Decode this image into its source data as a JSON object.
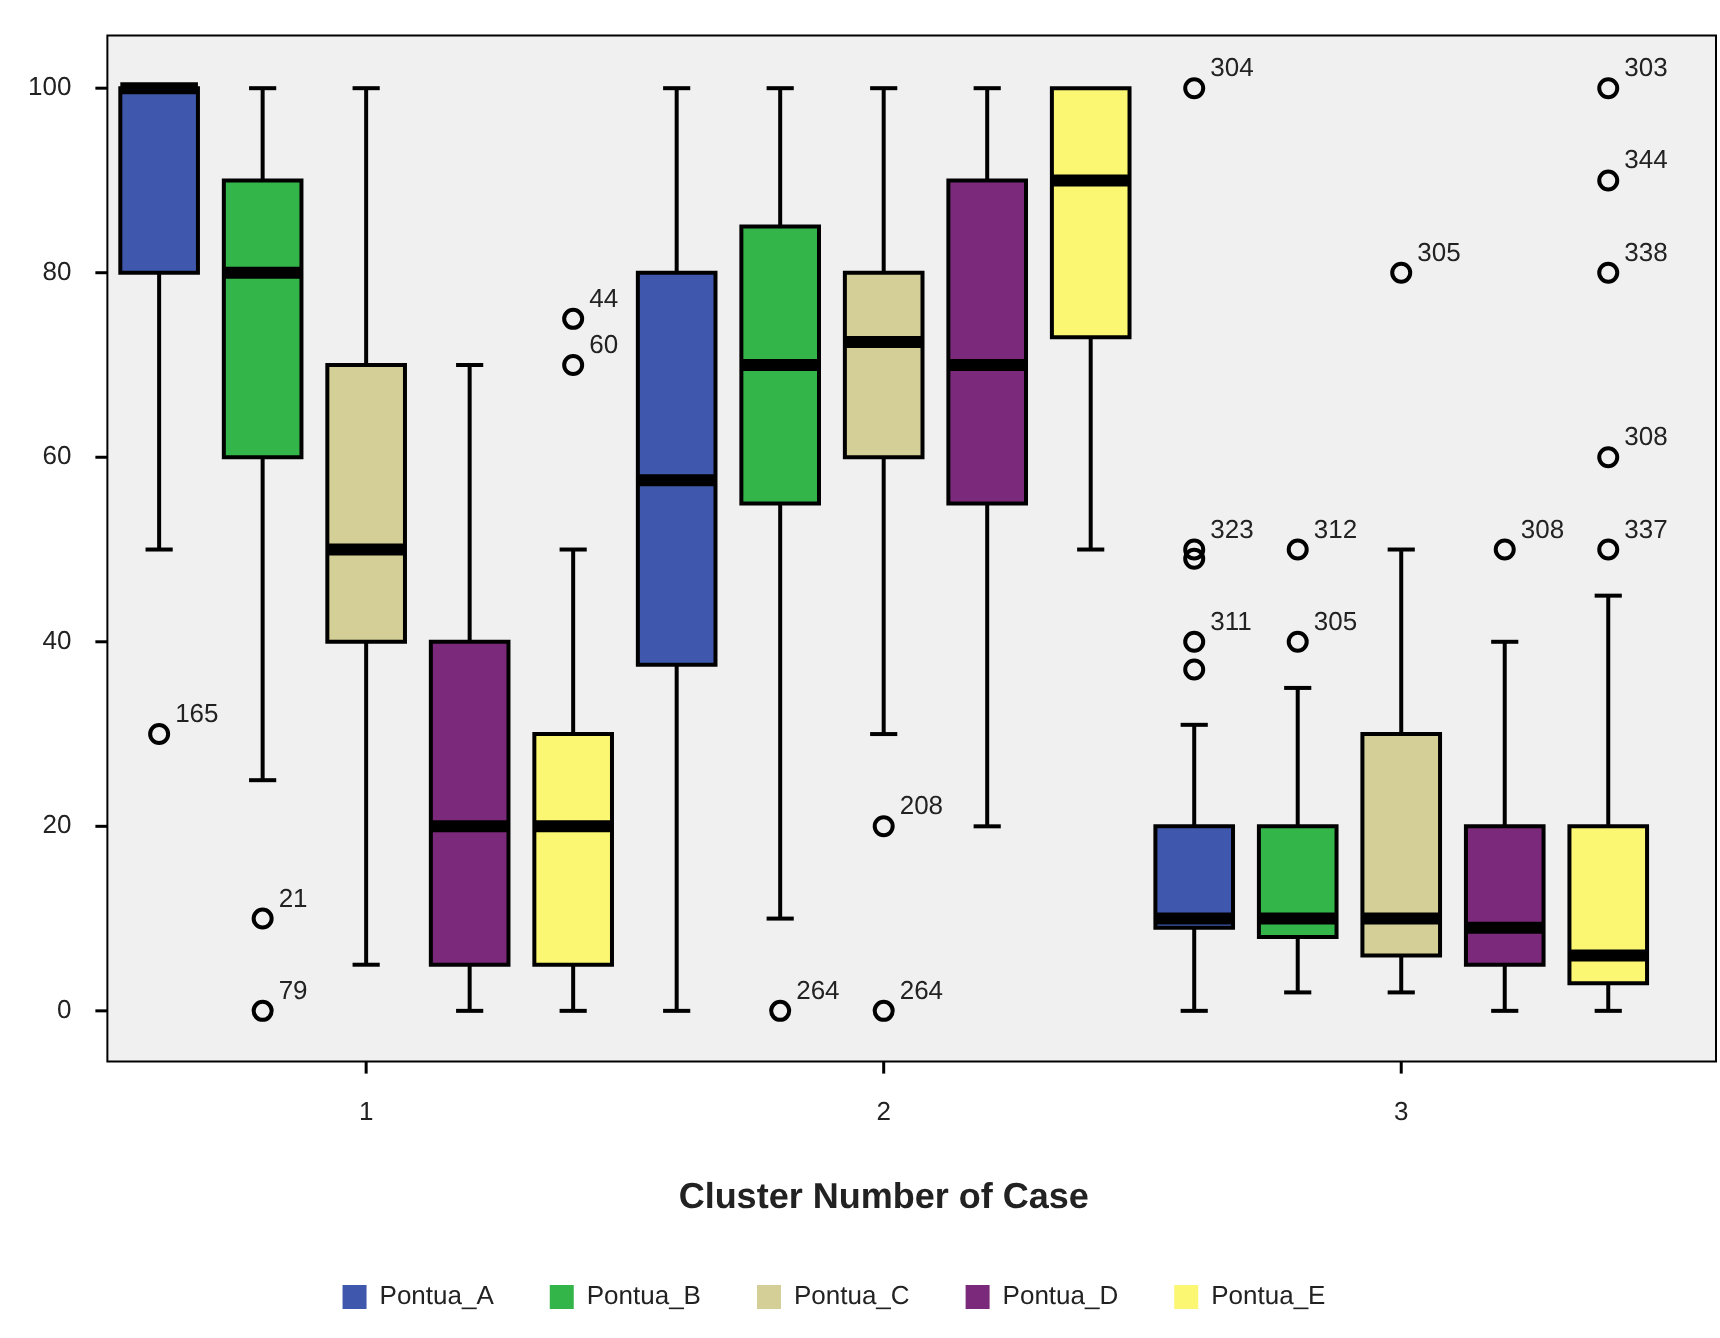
{
  "chart_data": {
    "type": "box",
    "xlabel": "Cluster Number of Case",
    "categories": [
      "1",
      "2",
      "3"
    ],
    "ylim": [
      -5.5,
      105.7
    ],
    "yticks": [
      0,
      20,
      40,
      60,
      80,
      100
    ],
    "legend": "bottom",
    "marker": "circle",
    "series": [
      {
        "name": "Pontua_A",
        "color": "#3f58ad",
        "boxes": [
          {
            "low": 50,
            "q1": 80,
            "median": 100,
            "q3": 100,
            "high": 100,
            "outliers": [
              30
            ]
          },
          {
            "low": 0,
            "q1": 37.5,
            "median": 57.5,
            "q3": 80,
            "high": 100
          },
          {
            "low": 0,
            "q1": 9,
            "median": 10,
            "q3": 20,
            "high": 31,
            "outliers": [
              50,
              49,
              40,
              37,
              100
            ]
          }
        ]
      },
      {
        "name": "Pontua_B",
        "color": "#33b54a",
        "boxes": [
          {
            "low": 25,
            "q1": 60,
            "median": 80,
            "q3": 90,
            "high": 100,
            "outliers": [
              10,
              0
            ]
          },
          {
            "low": 10,
            "q1": 55,
            "median": 70,
            "q3": 85,
            "high": 100,
            "outliers": [
              0
            ]
          },
          {
            "low": 2,
            "q1": 8,
            "median": 10,
            "q3": 20,
            "high": 35,
            "outliers": [
              50,
              40
            ]
          }
        ]
      },
      {
        "name": "Pontua_C",
        "color": "#d4cf97",
        "boxes": [
          {
            "low": 5,
            "q1": 40,
            "median": 50,
            "q3": 70,
            "high": 100
          },
          {
            "low": 30,
            "q1": 60,
            "median": 72.5,
            "q3": 80,
            "high": 100,
            "outliers": [
              20,
              0
            ]
          },
          {
            "low": 2,
            "q1": 6,
            "median": 10,
            "q3": 30,
            "high": 50,
            "outliers": [
              80
            ]
          }
        ]
      },
      {
        "name": "Pontua_D",
        "color": "#7b2a7b",
        "boxes": [
          {
            "low": 0,
            "q1": 5,
            "median": 20,
            "q3": 40,
            "high": 70
          },
          {
            "low": 20,
            "q1": 55,
            "median": 70,
            "q3": 90,
            "high": 100
          },
          {
            "low": 0,
            "q1": 5,
            "median": 9,
            "q3": 20,
            "high": 40,
            "outliers": [
              50
            ]
          }
        ]
      },
      {
        "name": "Pontua_E",
        "color": "#fbf772",
        "boxes": [
          {
            "low": 0,
            "q1": 5,
            "median": 20,
            "q3": 30,
            "high": 50,
            "outliers": [
              75,
              70
            ]
          },
          {
            "low": 50,
            "q1": 73,
            "median": 90,
            "q3": 100,
            "high": 100
          },
          {
            "low": 0,
            "q1": 3,
            "median": 6,
            "q3": 20,
            "high": 45,
            "outliers": [
              100,
              90,
              80,
              60,
              50
            ]
          }
        ]
      }
    ],
    "annotations": [
      "165",
      "323",
      null,
      "311",
      null,
      "304",
      "21",
      "79",
      "264",
      "312",
      "305",
      "208",
      "264",
      "305",
      "308",
      "44",
      "60",
      "303",
      "344",
      "338",
      "308",
      "337"
    ]
  }
}
